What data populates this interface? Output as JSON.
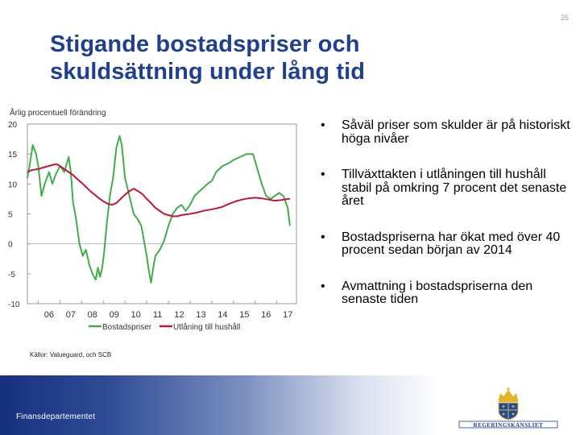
{
  "page_number": "25",
  "title": "Stigande bostadspriser och skuldsättning under lång tid",
  "bullets": [
    "Såväl priser som skulder är på historiskt höga nivåer",
    "Tillväxttakten i utlåningen till hushåll stabil på omkring 7 procent det senaste året",
    "Bostadspriserna har ökat med över 40 procent sedan början av 2014",
    "Avmattning i bostadspriserna den senaste tiden"
  ],
  "source": "Källor: Valueguard, och SCB",
  "footer_label": "Finansdepartementet",
  "logo_text": "REGERINGSKANSLIET",
  "colors": {
    "title": "#1f3f8f",
    "bostadspriser": "#3fae49",
    "utlaning": "#c0163a"
  },
  "chart_data": {
    "type": "line",
    "ylabel": "Årlig procentuell förändring",
    "ylim": [
      -10,
      20
    ],
    "yticks": [
      20,
      15,
      10,
      5,
      0,
      -5,
      -10
    ],
    "xlim": [
      2005.5,
      2017.9
    ],
    "xtick_labels": [
      "06",
      "07",
      "08",
      "09",
      "10",
      "11",
      "12",
      "13",
      "14",
      "15",
      "16",
      "17"
    ],
    "grid": false,
    "legend_position": "bottom",
    "series": [
      {
        "name": "Bostadspriser",
        "color": "#3fae49",
        "points": [
          [
            2005.5,
            11
          ],
          [
            2005.6,
            13
          ],
          [
            2005.75,
            16.5
          ],
          [
            2005.9,
            15
          ],
          [
            2006.0,
            13
          ],
          [
            2006.15,
            8
          ],
          [
            2006.3,
            10
          ],
          [
            2006.5,
            12
          ],
          [
            2006.65,
            10
          ],
          [
            2006.8,
            11.5
          ],
          [
            2007.0,
            13
          ],
          [
            2007.2,
            12
          ],
          [
            2007.4,
            14.5
          ],
          [
            2007.5,
            12
          ],
          [
            2007.6,
            7
          ],
          [
            2007.75,
            4
          ],
          [
            2007.9,
            0
          ],
          [
            2008.05,
            -2
          ],
          [
            2008.2,
            -1
          ],
          [
            2008.35,
            -3.5
          ],
          [
            2008.5,
            -5
          ],
          [
            2008.65,
            -6
          ],
          [
            2008.75,
            -4
          ],
          [
            2008.85,
            -5.5
          ],
          [
            2008.95,
            -4
          ],
          [
            2009.05,
            -1
          ],
          [
            2009.15,
            3
          ],
          [
            2009.3,
            8
          ],
          [
            2009.45,
            11
          ],
          [
            2009.6,
            16
          ],
          [
            2009.75,
            18
          ],
          [
            2009.85,
            16.5
          ],
          [
            2010.0,
            11
          ],
          [
            2010.2,
            8
          ],
          [
            2010.4,
            5
          ],
          [
            2010.6,
            4
          ],
          [
            2010.75,
            3
          ],
          [
            2010.9,
            0
          ],
          [
            2011.0,
            -2
          ],
          [
            2011.1,
            -4.5
          ],
          [
            2011.2,
            -6.5
          ],
          [
            2011.3,
            -4
          ],
          [
            2011.4,
            -2
          ],
          [
            2011.6,
            -1
          ],
          [
            2011.8,
            0.5
          ],
          [
            2012.0,
            3
          ],
          [
            2012.2,
            5
          ],
          [
            2012.4,
            6
          ],
          [
            2012.6,
            6.5
          ],
          [
            2012.8,
            5.5
          ],
          [
            2013.0,
            6.5
          ],
          [
            2013.2,
            8
          ],
          [
            2013.5,
            9
          ],
          [
            2013.8,
            10
          ],
          [
            2014.0,
            10.5
          ],
          [
            2014.2,
            12
          ],
          [
            2014.5,
            13
          ],
          [
            2014.8,
            13.5
          ],
          [
            2015.0,
            14
          ],
          [
            2015.3,
            14.5
          ],
          [
            2015.6,
            15
          ],
          [
            2015.9,
            15
          ],
          [
            2016.1,
            12.5
          ],
          [
            2016.3,
            10
          ],
          [
            2016.5,
            8
          ],
          [
            2016.7,
            7.5
          ],
          [
            2016.9,
            8
          ],
          [
            2017.1,
            8.5
          ],
          [
            2017.3,
            8
          ],
          [
            2017.5,
            6
          ],
          [
            2017.6,
            3
          ]
        ]
      },
      {
        "name": "Utlåning till hushåll",
        "color": "#c0163a",
        "points": [
          [
            2005.5,
            12
          ],
          [
            2005.7,
            12.3
          ],
          [
            2006.0,
            12.5
          ],
          [
            2006.3,
            12.8
          ],
          [
            2006.5,
            13
          ],
          [
            2006.7,
            13.2
          ],
          [
            2006.85,
            13.3
          ],
          [
            2007.0,
            13
          ],
          [
            2007.2,
            12.5
          ],
          [
            2007.4,
            12
          ],
          [
            2007.6,
            11.5
          ],
          [
            2007.8,
            10.8
          ],
          [
            2008.0,
            10.2
          ],
          [
            2008.2,
            9.5
          ],
          [
            2008.4,
            8.8
          ],
          [
            2008.6,
            8.2
          ],
          [
            2008.8,
            7.6
          ],
          [
            2009.0,
            7.1
          ],
          [
            2009.2,
            6.7
          ],
          [
            2009.4,
            6.5
          ],
          [
            2009.6,
            6.8
          ],
          [
            2009.8,
            7.5
          ],
          [
            2010.0,
            8.2
          ],
          [
            2010.2,
            8.8
          ],
          [
            2010.4,
            9.2
          ],
          [
            2010.6,
            8.8
          ],
          [
            2010.8,
            8.3
          ],
          [
            2011.0,
            7.5
          ],
          [
            2011.2,
            6.8
          ],
          [
            2011.4,
            6
          ],
          [
            2011.6,
            5.5
          ],
          [
            2011.8,
            5
          ],
          [
            2012.0,
            4.8
          ],
          [
            2012.2,
            4.6
          ],
          [
            2012.4,
            4.6
          ],
          [
            2012.6,
            4.8
          ],
          [
            2012.8,
            4.9
          ],
          [
            2013.0,
            5
          ],
          [
            2013.3,
            5.2
          ],
          [
            2013.6,
            5.5
          ],
          [
            2013.9,
            5.7
          ],
          [
            2014.2,
            5.9
          ],
          [
            2014.5,
            6.2
          ],
          [
            2014.8,
            6.7
          ],
          [
            2015.1,
            7.1
          ],
          [
            2015.4,
            7.4
          ],
          [
            2015.7,
            7.6
          ],
          [
            2016.0,
            7.7
          ],
          [
            2016.3,
            7.6
          ],
          [
            2016.6,
            7.4
          ],
          [
            2016.9,
            7.2
          ],
          [
            2017.2,
            7.3
          ],
          [
            2017.5,
            7.5
          ],
          [
            2017.6,
            7.5
          ]
        ]
      }
    ]
  }
}
